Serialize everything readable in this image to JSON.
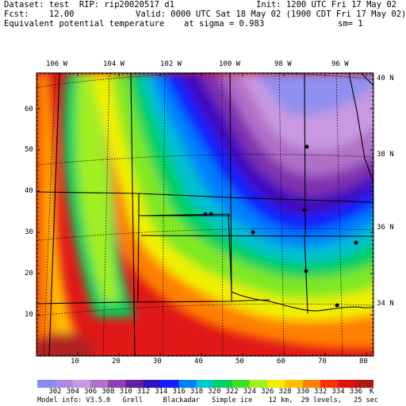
{
  "header": {
    "line1_left": "Dataset: test  RIP: rip20020517 d1",
    "line1_right": "Init: 1200 UTC Fri 17 May 02",
    "line2_left": "Fcst:    12.00",
    "line2_right": "Valid: 0000 UTC Sat 18 May 02 (1900 CDT Fri 17 May 02)",
    "line3_left": "Equivalent potential temperature",
    "line3_mid": "at sigma = 0.983",
    "line3_right": "sm= 1"
  },
  "map": {
    "lon_labels": [
      "106 W",
      "104 W",
      "102 W",
      "100 W",
      "98 W",
      "96 W"
    ],
    "lat_labels": [
      "40 N",
      "38 N",
      "36 N",
      "34 N"
    ],
    "x_ticks": [
      "10",
      "20",
      "30",
      "40",
      "50",
      "60",
      "70",
      "80"
    ],
    "y_ticks": [
      "60",
      "50",
      "40",
      "30",
      "20",
      "10"
    ],
    "stations": [
      "s1",
      "s2",
      "s3",
      "s4",
      "s5",
      "s6",
      "s7",
      "s8"
    ]
  },
  "colorbar": {
    "labels": [
      "302",
      "304",
      "306",
      "308",
      "310",
      "312",
      "314",
      "316",
      "318",
      "320",
      "322",
      "324",
      "326",
      "328",
      "330",
      "332",
      "334",
      "336"
    ],
    "unit": "K",
    "colors": [
      "#8a8aee",
      "#a88ae0",
      "#c89ae0",
      "#b070c8",
      "#9040b0",
      "#6020a0",
      "#3010c0",
      "#1020ff",
      "#0080ff",
      "#00c8c8",
      "#00d060",
      "#40e020",
      "#a0f020",
      "#f0f000",
      "#ffc000",
      "#ff8000",
      "#ff3000",
      "#e01010",
      "#b01818"
    ]
  },
  "footer": {
    "model_info": "Model info: V3.5.0   Grell     Blackadar   Simple ice    12 km,  29 levels,   25 sec"
  }
}
